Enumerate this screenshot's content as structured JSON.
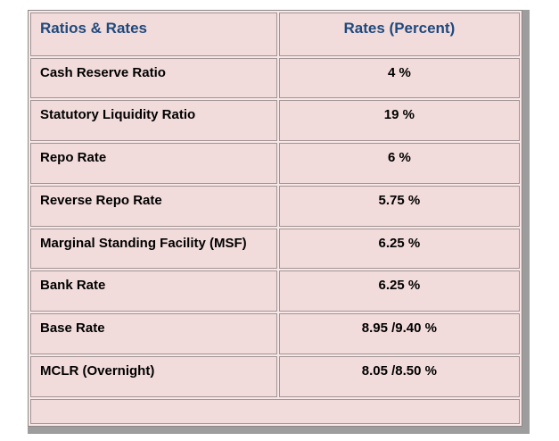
{
  "chart_data": {
    "type": "table",
    "title": "Ratios & Rates",
    "columns": [
      "Ratios & Rates",
      "Rates (Percent)"
    ],
    "rows": [
      [
        "Cash Reserve Ratio",
        "4 %"
      ],
      [
        "Statutory Liquidity Ratio",
        "19 %"
      ],
      [
        "Repo Rate",
        "6 %"
      ],
      [
        "Reverse Repo Rate",
        "5.75 %"
      ],
      [
        "Marginal Standing Facility (MSF)",
        "6.25 %"
      ],
      [
        "Bank Rate",
        "6.25 %"
      ],
      [
        "Base Rate",
        "8.95 /9.40 %"
      ],
      [
        "MCLR (Overnight)",
        "8.05 /8.50 %"
      ]
    ],
    "footer_row": ""
  },
  "colors": {
    "cell_fill": "#f2dcdb",
    "cell_gap": "#f7e7e6",
    "grid_line": "#a29394",
    "outer_border": "#8f8687",
    "shadow": "#9d9d9d",
    "header_text": "#1f497d",
    "body_text": "#000000",
    "page_background": "#ffffff"
  }
}
